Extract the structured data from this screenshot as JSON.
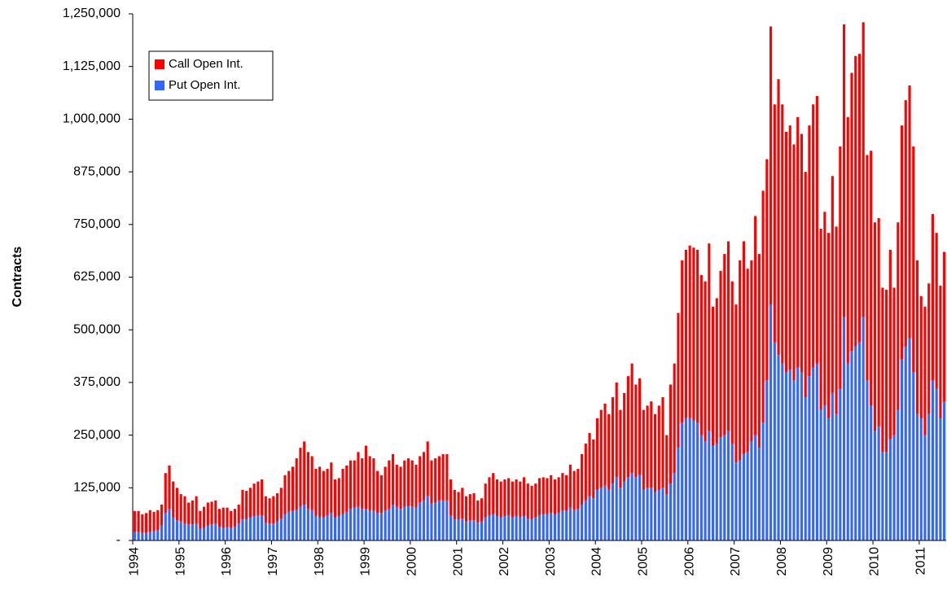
{
  "chart_data": {
    "type": "stacked-bar",
    "y_label": "Contracts",
    "categories": [
      "1994",
      null,
      null,
      null,
      null,
      null,
      null,
      null,
      null,
      null,
      null,
      null,
      "1995",
      null,
      null,
      null,
      null,
      null,
      null,
      null,
      null,
      null,
      null,
      null,
      "1996",
      null,
      null,
      null,
      null,
      null,
      null,
      null,
      null,
      null,
      null,
      null,
      "1997",
      null,
      null,
      null,
      null,
      null,
      null,
      null,
      null,
      null,
      null,
      null,
      "1998",
      null,
      null,
      null,
      null,
      null,
      null,
      null,
      null,
      null,
      null,
      null,
      "1999",
      null,
      null,
      null,
      null,
      null,
      null,
      null,
      null,
      null,
      null,
      null,
      "2000",
      null,
      null,
      null,
      null,
      null,
      null,
      null,
      null,
      null,
      null,
      null,
      "2001",
      null,
      null,
      null,
      null,
      null,
      null,
      null,
      null,
      null,
      null,
      null,
      "2002",
      null,
      null,
      null,
      null,
      null,
      null,
      null,
      null,
      null,
      null,
      null,
      "2003",
      null,
      null,
      null,
      null,
      null,
      null,
      null,
      null,
      null,
      null,
      null,
      "2004",
      null,
      null,
      null,
      null,
      null,
      null,
      null,
      null,
      null,
      null,
      null,
      "2005",
      null,
      null,
      null,
      null,
      null,
      null,
      null,
      null,
      null,
      null,
      null,
      "2006",
      null,
      null,
      null,
      null,
      null,
      null,
      null,
      null,
      null,
      null,
      null,
      "2007",
      null,
      null,
      null,
      null,
      null,
      null,
      null,
      null,
      null,
      null,
      null,
      "2008",
      null,
      null,
      null,
      null,
      null,
      null,
      null,
      null,
      null,
      null,
      null,
      "2009",
      null,
      null,
      null,
      null,
      null,
      null,
      null,
      null,
      null,
      null,
      null,
      "2010",
      null,
      null,
      null,
      null,
      null,
      null,
      null,
      null,
      null,
      null,
      null,
      "2011",
      null,
      null,
      null,
      null,
      null,
      null
    ],
    "series": [
      {
        "name": "Call Open Int.",
        "color": "#ff0000",
        "values": [
          50000,
          50000,
          44000,
          47000,
          52000,
          46000,
          47000,
          50000,
          95000,
          103000,
          85000,
          77000,
          65000,
          65000,
          52000,
          57000,
          65000,
          42000,
          50000,
          55000,
          54000,
          55000,
          43000,
          48000,
          46000,
          40000,
          42000,
          45000,
          70000,
          68000,
          70000,
          77000,
          80000,
          85000,
          63000,
          60000,
          65000,
          67000,
          73000,
          93000,
          97000,
          105000,
          123000,
          140000,
          150000,
          135000,
          128000,
          112000,
          120000,
          110000,
          110000,
          120000,
          90000,
          90000,
          108000,
          110000,
          115000,
          112000,
          130000,
          120000,
          150000,
          130000,
          125000,
          100000,
          90000,
          105000,
          115000,
          120000,
          100000,
          100000,
          110000,
          113000,
          110000,
          102000,
          110000,
          115000,
          130000,
          102000,
          105000,
          105000,
          110000,
          110000,
          85000,
          70000,
          65000,
          73000,
          60000,
          62000,
          64000,
          53000,
          55000,
          80000,
          90000,
          98000,
          87000,
          85000,
          87000,
          88000,
          85000,
          87000,
          85000,
          92000,
          83000,
          80000,
          80000,
          88000,
          88000,
          86000,
          90000,
          83000,
          85000,
          90000,
          85000,
          102000,
          93000,
          95000,
          120000,
          135000,
          150000,
          140000,
          170000,
          185000,
          195000,
          180000,
          205000,
          225000,
          185000,
          210000,
          240000,
          260000,
          220000,
          230000,
          190000,
          195000,
          205000,
          185000,
          200000,
          215000,
          140000,
          235000,
          260000,
          320000,
          385000,
          400000,
          410000,
          410000,
          410000,
          380000,
          380000,
          445000,
          330000,
          345000,
          395000,
          430000,
          450000,
          385000,
          375000,
          475000,
          505000,
          435000,
          430000,
          520000,
          460000,
          550000,
          525000,
          660000,
          565000,
          655000,
          615000,
          570000,
          580000,
          560000,
          595000,
          565000,
          535000,
          595000,
          625000,
          635000,
          430000,
          460000,
          440000,
          515000,
          445000,
          575000,
          695000,
          585000,
          660000,
          690000,
          685000,
          700000,
          535000,
          605000,
          495000,
          495000,
          390000,
          385000,
          450000,
          350000,
          445000,
          555000,
          585000,
          600000,
          535000,
          365000,
          290000,
          305000,
          310000,
          395000,
          370000,
          315000,
          355000
        ]
      },
      {
        "name": "Put Open Int.",
        "color": "#3366ff",
        "values": [
          20000,
          20000,
          18000,
          18000,
          20000,
          22000,
          25000,
          35000,
          65000,
          75000,
          55000,
          48000,
          45000,
          40000,
          38000,
          38000,
          40000,
          28000,
          30000,
          35000,
          38000,
          40000,
          32000,
          30000,
          32000,
          30000,
          33000,
          40000,
          50000,
          50000,
          55000,
          58000,
          60000,
          60000,
          42000,
          40000,
          40000,
          45000,
          52000,
          62000,
          68000,
          70000,
          72000,
          80000,
          85000,
          75000,
          72000,
          58000,
          55000,
          55000,
          60000,
          65000,
          55000,
          58000,
          62000,
          68000,
          75000,
          78000,
          80000,
          75000,
          75000,
          70000,
          70000,
          65000,
          65000,
          70000,
          75000,
          85000,
          80000,
          75000,
          80000,
          82000,
          80000,
          78000,
          90000,
          95000,
          105000,
          88000,
          90000,
          95000,
          95000,
          95000,
          60000,
          50000,
          50000,
          52000,
          45000,
          48000,
          48000,
          42000,
          45000,
          55000,
          60000,
          62000,
          58000,
          55000,
          58000,
          60000,
          55000,
          58000,
          55000,
          58000,
          52000,
          50000,
          55000,
          60000,
          62000,
          62000,
          65000,
          62000,
          65000,
          70000,
          70000,
          78000,
          72000,
          75000,
          85000,
          95000,
          105000,
          100000,
          120000,
          125000,
          130000,
          120000,
          135000,
          150000,
          125000,
          140000,
          150000,
          160000,
          150000,
          155000,
          120000,
          125000,
          125000,
          115000,
          120000,
          125000,
          110000,
          135000,
          160000,
          220000,
          280000,
          290000,
          290000,
          285000,
          280000,
          250000,
          235000,
          260000,
          225000,
          230000,
          245000,
          250000,
          260000,
          230000,
          185000,
          190000,
          205000,
          210000,
          235000,
          250000,
          220000,
          280000,
          380000,
          560000,
          470000,
          440000,
          420000,
          400000,
          405000,
          380000,
          410000,
          400000,
          340000,
          390000,
          410000,
          420000,
          310000,
          320000,
          290000,
          350000,
          300000,
          360000,
          530000,
          420000,
          450000,
          460000,
          470000,
          530000,
          380000,
          320000,
          260000,
          270000,
          210000,
          210000,
          240000,
          250000,
          310000,
          430000,
          460000,
          480000,
          400000,
          300000,
          290000,
          250000,
          300000,
          380000,
          360000,
          290000,
          330000
        ]
      }
    ],
    "ylim": [
      0,
      1250000
    ],
    "yticks": [
      {
        "value": 0,
        "label": "-"
      },
      {
        "value": 125000,
        "label": "125,000"
      },
      {
        "value": 250000,
        "label": "250,000"
      },
      {
        "value": 375000,
        "label": "375,000"
      },
      {
        "value": 500000,
        "label": "500,000"
      },
      {
        "value": 625000,
        "label": "625,000"
      },
      {
        "value": 750000,
        "label": "750,000"
      },
      {
        "value": 875000,
        "label": "875,000"
      },
      {
        "value": 1000000,
        "label": "1,000,000"
      },
      {
        "value": 1125000,
        "label": "1,125,000"
      },
      {
        "value": 1250000,
        "label": "1,250,000"
      }
    ],
    "grid": false,
    "legend": "top-left"
  }
}
